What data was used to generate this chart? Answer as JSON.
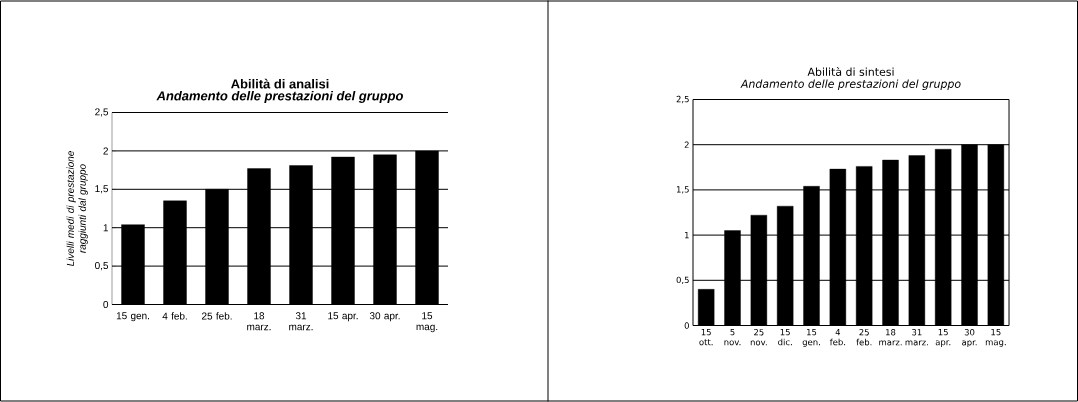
{
  "chart_data": [
    {
      "type": "bar",
      "title": "Abilità di analisi",
      "subtitle": "Andamento delle prestazioni del gruppo",
      "ylabel": "Livelli medi di prestazione raggiunti dal gruppo",
      "categories": [
        "15 gen.",
        "4 feb.",
        "25 feb.",
        "18 marz.",
        "31 marz.",
        "15 apr.",
        "30 apr.",
        "15 mag."
      ],
      "values": [
        1.04,
        1.35,
        1.5,
        1.77,
        1.81,
        1.92,
        1.95,
        2.0
      ],
      "color": "#000000",
      "ylim": [
        0,
        2.5
      ],
      "yticks": [
        0,
        {
          "value": 0.5,
          "label": "0,5"
        },
        1,
        {
          "value": 1.5,
          "label": "1,5"
        },
        2,
        {
          "value": 2.5,
          "label": "2,5"
        }
      ],
      "grid": "y"
    },
    {
      "type": "bar",
      "title": "Abilità di sintesi",
      "subtitle": "Andamento delle prestazioni del gruppo",
      "categories": [
        "15 ott.",
        "5 nov.",
        "25 nov.",
        "15 dic.",
        "15 gen.",
        "4 feb.",
        "25 feb.",
        "18 marz.",
        "31 marz.",
        "15 apr.",
        "30 apr.",
        "15 mag."
      ],
      "values": [
        0.4,
        1.05,
        1.22,
        1.32,
        1.54,
        1.73,
        1.76,
        1.83,
        1.88,
        1.95,
        2.0,
        2.0
      ],
      "color": "#000000",
      "ylim": [
        0,
        2.5
      ],
      "yticks": [
        0,
        {
          "value": 0.5,
          "label": "0,5"
        },
        1,
        {
          "value": 1.5,
          "label": "1,5"
        },
        2,
        {
          "value": 2.5,
          "label": "2,5"
        }
      ],
      "grid": "y"
    }
  ]
}
